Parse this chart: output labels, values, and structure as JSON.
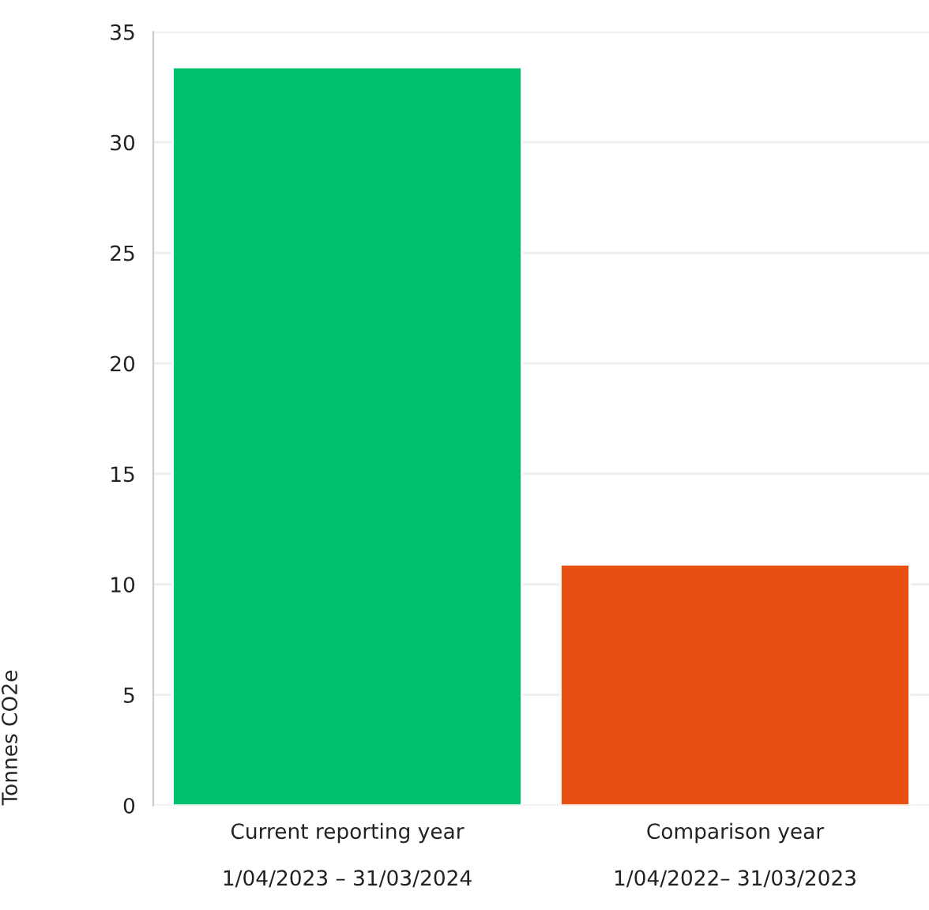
{
  "chart_data": {
    "type": "bar",
    "categories": [
      "Current reporting year\n\n1/04/2023 – 31/03/2024",
      "Comparison year\n\n1/04/2022– 31/03/2023"
    ],
    "values": [
      33.4,
      10.9
    ],
    "colors": [
      "#00bf6f",
      "#e85012"
    ],
    "ylabel": "Tonnes CO2e",
    "ylim": [
      0,
      35
    ],
    "yticks": [
      0,
      5,
      10,
      15,
      20,
      25,
      30,
      35
    ],
    "grid": "y"
  }
}
